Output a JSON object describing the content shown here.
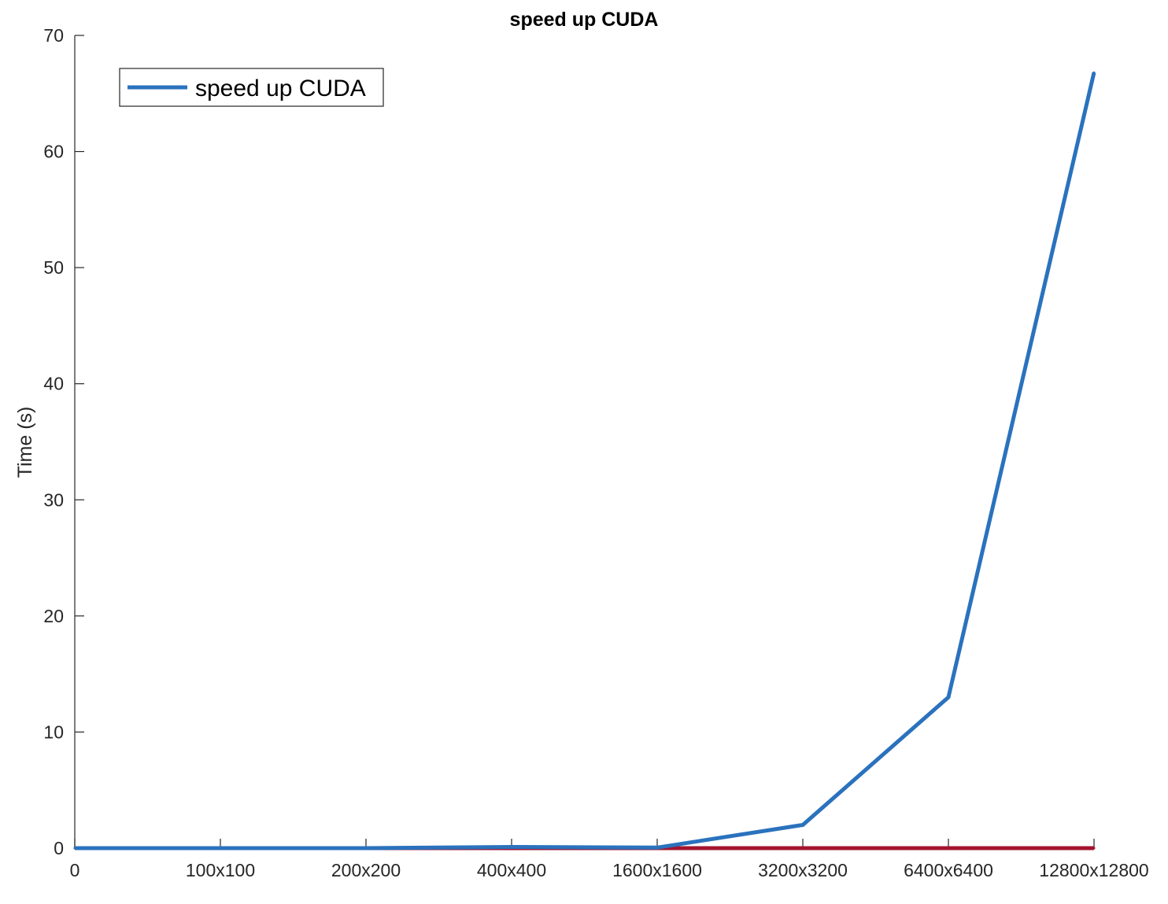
{
  "chart_data": {
    "type": "line",
    "title": "speed up CUDA",
    "xlabel": "",
    "ylabel": "Time (s)",
    "categories": [
      "0",
      "100x100",
      "200x200",
      "400x400",
      "1600x1600",
      "3200x3200",
      "6400x6400",
      "12800x12800"
    ],
    "yticks": [
      "0",
      "10",
      "20",
      "30",
      "40",
      "50",
      "60",
      "70"
    ],
    "ylim": [
      0,
      70
    ],
    "grid": false,
    "legend": {
      "position": "top-left",
      "entries": [
        "speed up CUDA"
      ]
    },
    "series": [
      {
        "name": "speed up CUDA",
        "color": "#2a72bd",
        "values": [
          0,
          0,
          0,
          0.1,
          0.05,
          2.0,
          13.0,
          66.8
        ]
      },
      {
        "color": "#a2142f",
        "values": [
          0,
          0,
          0,
          0,
          0,
          0,
          0,
          0
        ]
      }
    ]
  }
}
